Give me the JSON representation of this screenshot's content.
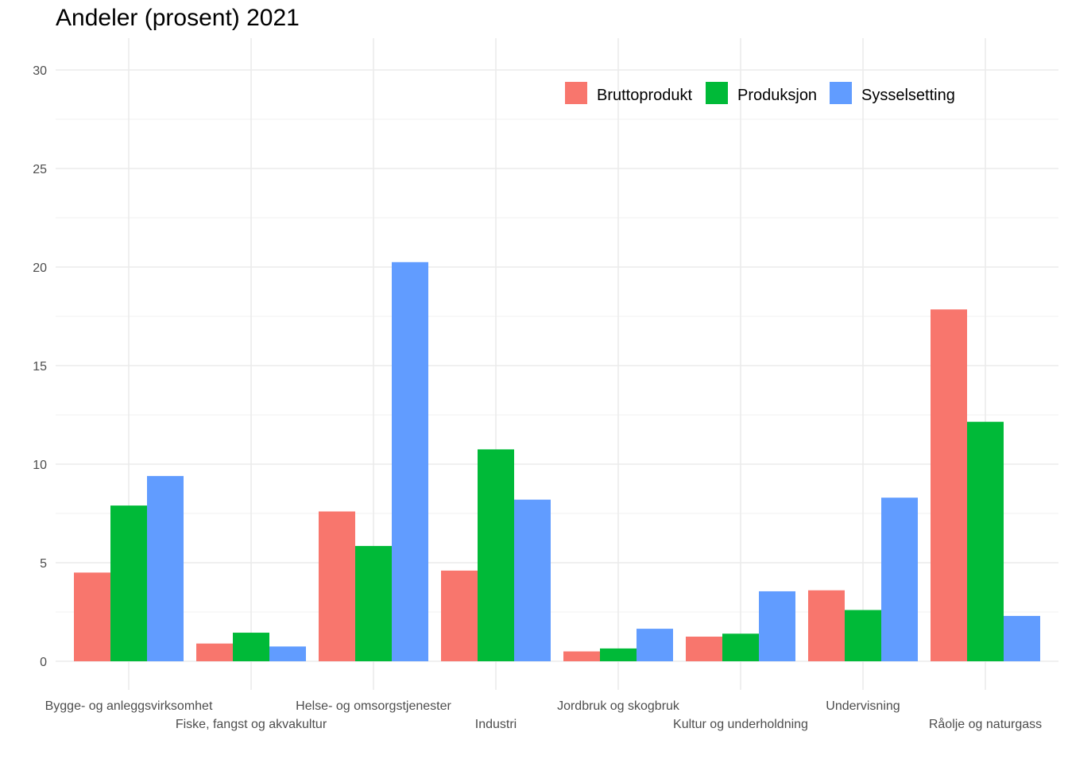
{
  "chart_data": {
    "type": "bar",
    "title": "Andeler (prosent) 2021",
    "xlabel": "",
    "ylabel": "",
    "ylim": [
      0,
      30
    ],
    "yticks": [
      0,
      5,
      10,
      15,
      20,
      25,
      30
    ],
    "grid": true,
    "legend_position": "top-right",
    "categories": [
      "Bygge- og anleggsvirksomhet",
      "Fiske, fangst og akvakultur",
      "Helse- og omsorgstjenester",
      "Industri",
      "Jordbruk og skogbruk",
      "Kultur og underholdning",
      "Undervisning",
      "Råolje og naturgass"
    ],
    "series": [
      {
        "name": "Bruttoprodukt",
        "color": "#F8766D",
        "values": [
          4.5,
          0.9,
          7.6,
          4.6,
          0.5,
          1.25,
          3.6,
          17.85
        ]
      },
      {
        "name": "Produksjon",
        "color": "#00BA38",
        "values": [
          7.9,
          1.45,
          5.85,
          10.75,
          0.65,
          1.4,
          2.6,
          12.15
        ]
      },
      {
        "name": "Sysselsetting",
        "color": "#619CFF",
        "values": [
          9.4,
          0.75,
          20.25,
          8.2,
          1.65,
          3.55,
          8.3,
          2.3
        ]
      }
    ]
  }
}
